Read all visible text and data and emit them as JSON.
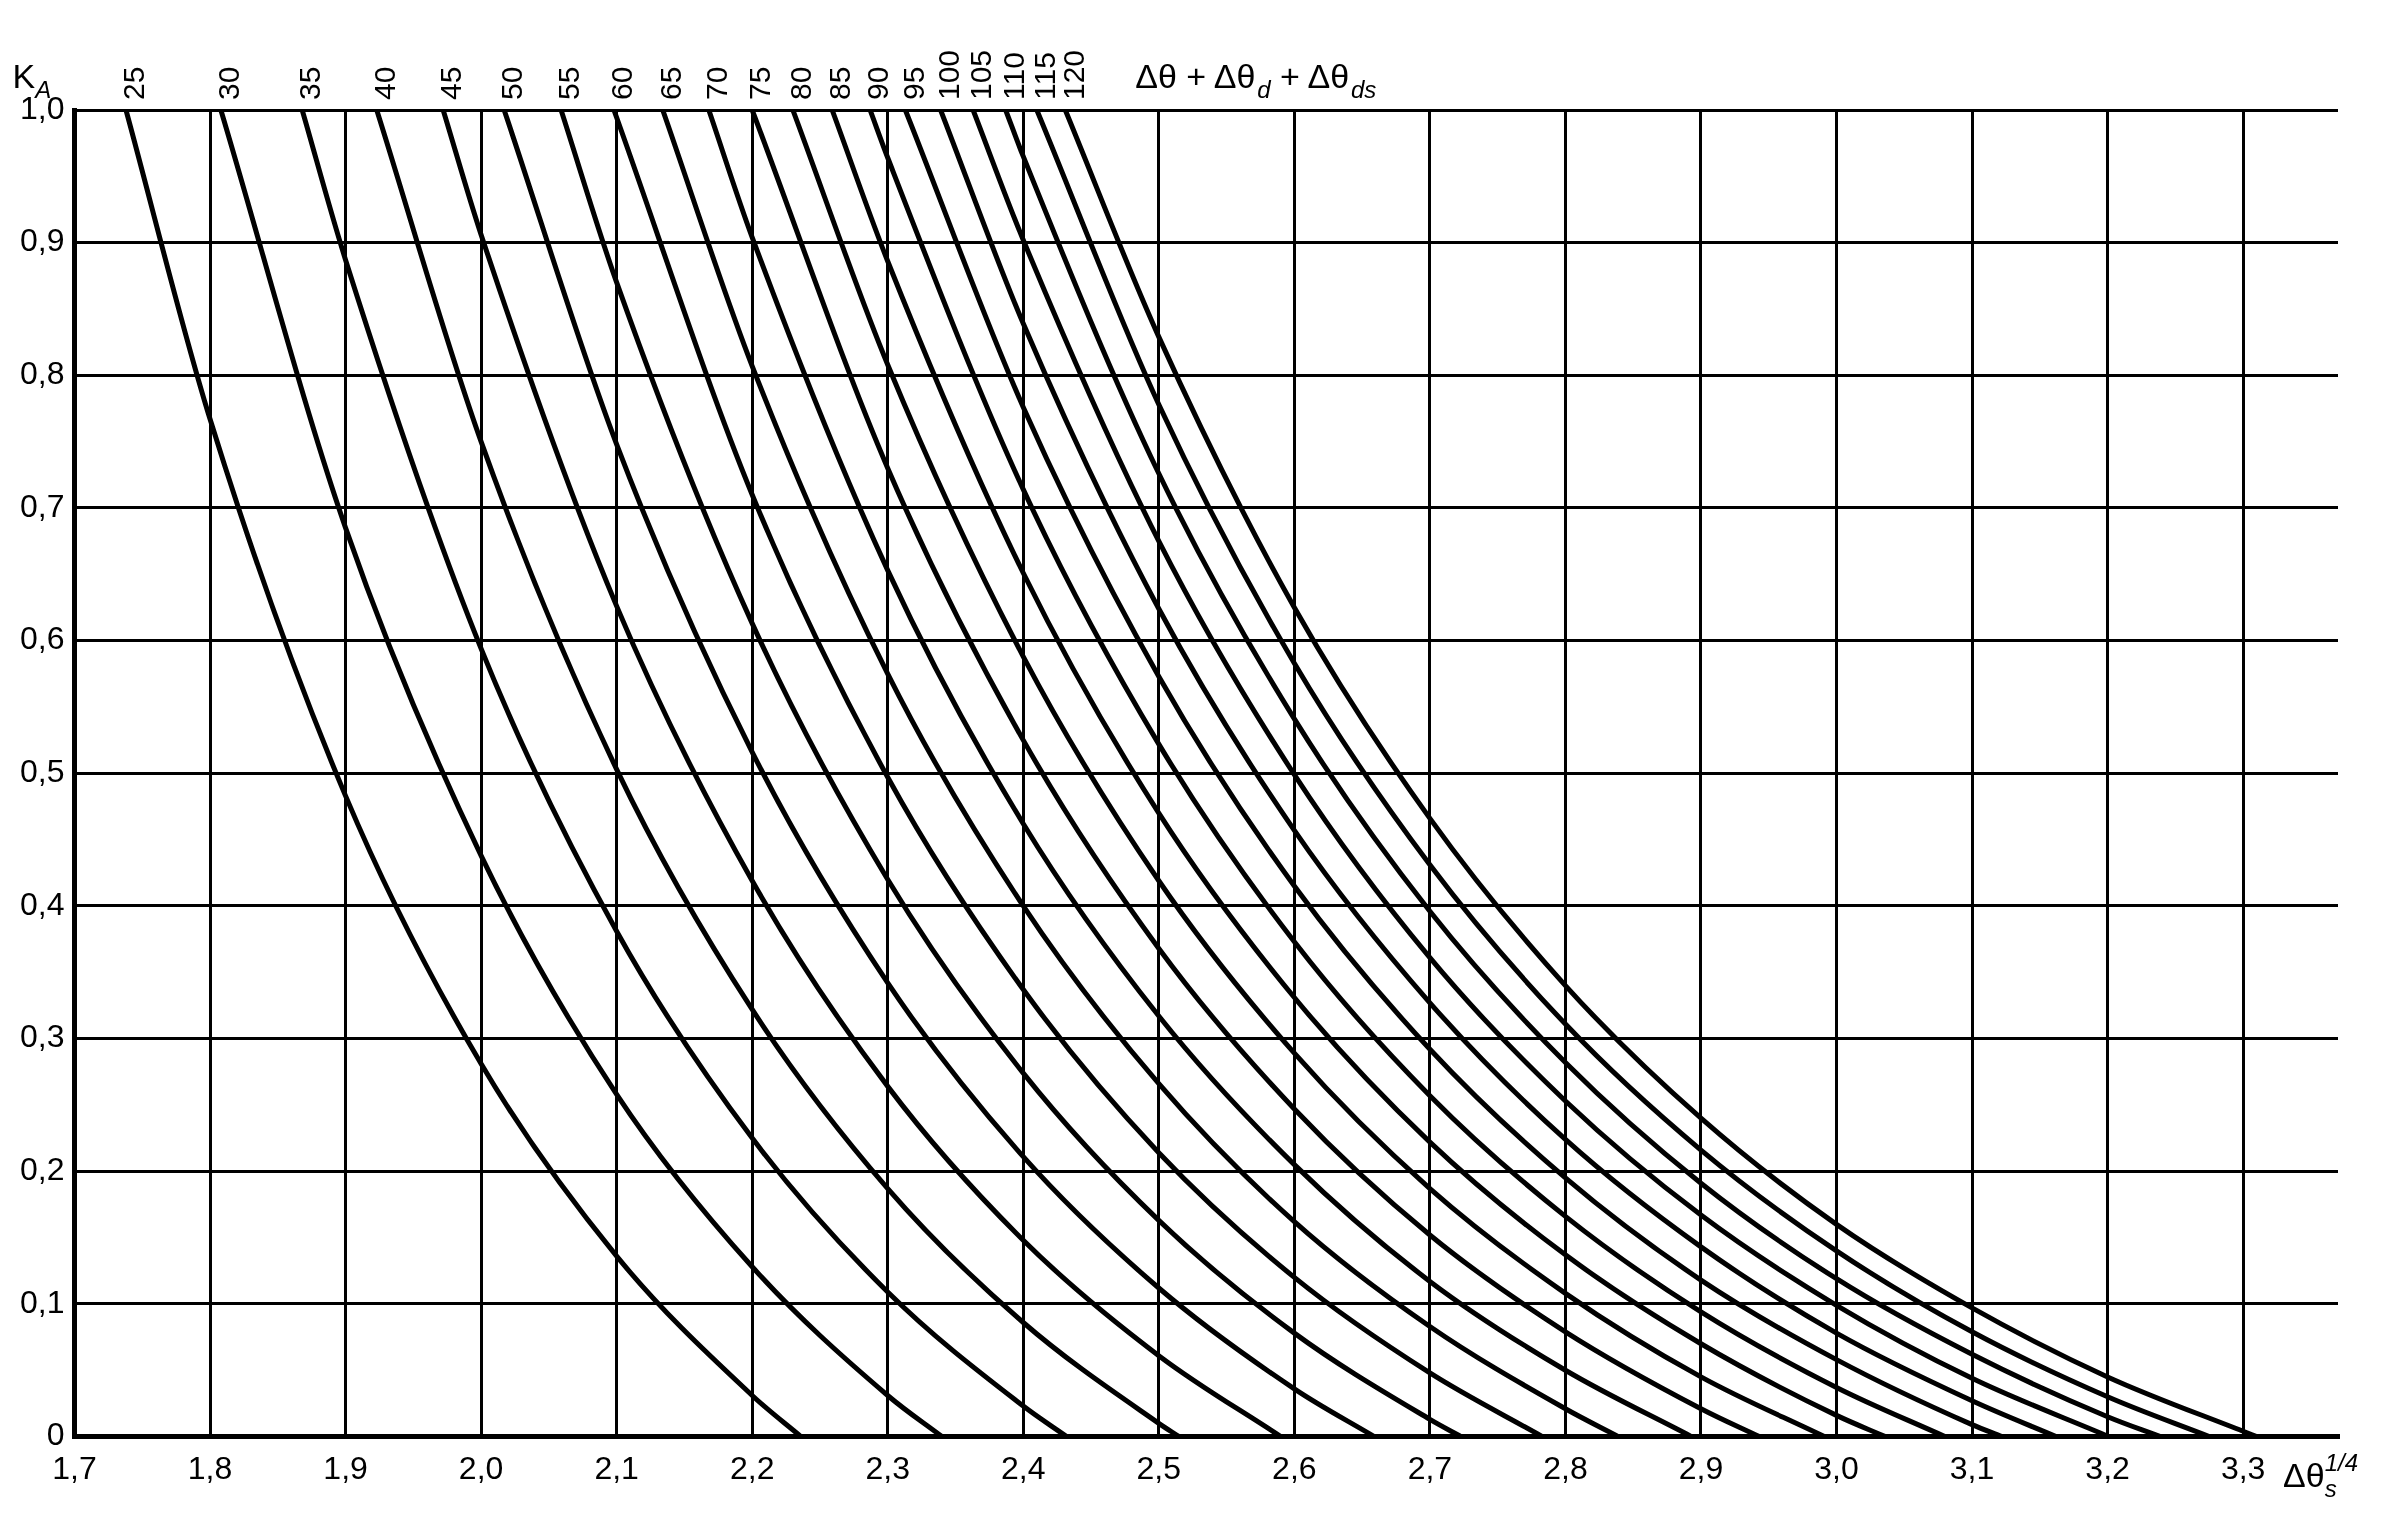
{
  "chart_data": {
    "type": "line",
    "ylabel": "K$_{A}$",
    "xlabel": "Δθ$_{s}$$^{1/4}$",
    "legend_title": "Δθ + Δθ$_{d}$ + Δθ$_{ds}$",
    "xlim": [
      1.7,
      3.37
    ],
    "ylim": [
      0,
      1
    ],
    "xticks": [
      {
        "value": 1.7,
        "label": "1,7"
      },
      {
        "value": 1.8,
        "label": "1,8"
      },
      {
        "value": 1.9,
        "label": "1,9"
      },
      {
        "value": 2.0,
        "label": "2,0"
      },
      {
        "value": 2.1,
        "label": "2,1"
      },
      {
        "value": 2.2,
        "label": "2,2"
      },
      {
        "value": 2.3,
        "label": "2,3"
      },
      {
        "value": 2.4,
        "label": "2,4"
      },
      {
        "value": 2.5,
        "label": "2,5"
      },
      {
        "value": 2.6,
        "label": "2,6"
      },
      {
        "value": 2.7,
        "label": "2,7"
      },
      {
        "value": 2.8,
        "label": "2,8"
      },
      {
        "value": 2.9,
        "label": "2,9"
      },
      {
        "value": 3.0,
        "label": "3,0"
      },
      {
        "value": 3.1,
        "label": "3,1"
      },
      {
        "value": 3.2,
        "label": "3,2"
      },
      {
        "value": 3.3,
        "label": "3,3"
      }
    ],
    "yticks": [
      0,
      {
        "value": 0.1,
        "label": "0,1"
      },
      {
        "value": 0.2,
        "label": "0,2"
      },
      {
        "value": 0.3,
        "label": "0,3"
      },
      {
        "value": 0.4,
        "label": "0,4"
      },
      {
        "value": 0.5,
        "label": "0,5"
      },
      {
        "value": 0.6,
        "label": "0,6"
      },
      {
        "value": 0.7,
        "label": "0,7"
      },
      {
        "value": 0.8,
        "label": "0,8"
      },
      {
        "value": 0.9,
        "label": "0,9"
      },
      {
        "value": 1,
        "label": "1,0"
      }
    ],
    "grid": true,
    "marker": "none",
    "line_style": "solid",
    "series": [
      {
        "name": "25",
        "color": "#000000",
        "x": [
          1.738,
          1.8,
          1.9,
          2.0,
          2.1,
          2.2,
          2.236
        ],
        "values": [
          1,
          0.767,
          0.483,
          0.281,
          0.136,
          0.031,
          0
        ]
      },
      {
        "name": "30",
        "color": "#000000",
        "x": [
          1.808,
          1.9,
          2.0,
          2.1,
          2.2,
          2.3,
          2.34
        ],
        "values": [
          1,
          0.685,
          0.438,
          0.258,
          0.128,
          0.031,
          0
        ]
      },
      {
        "name": "35",
        "color": "#000000",
        "x": [
          1.868,
          1.9,
          2.0,
          2.1,
          2.2,
          2.3,
          2.4,
          2.432
        ],
        "values": [
          1,
          0.887,
          0.594,
          0.381,
          0.225,
          0.109,
          0.023,
          0
        ]
      },
      {
        "name": "40",
        "color": "#000000",
        "x": [
          1.923,
          2.0,
          2.1,
          2.2,
          2.3,
          2.4,
          2.5,
          2.515
        ],
        "values": [
          1,
          0.75,
          0.503,
          0.322,
          0.187,
          0.086,
          0.01,
          0
        ]
      },
      {
        "name": "45",
        "color": "#000000",
        "x": [
          1.972,
          2.0,
          2.1,
          2.2,
          2.3,
          2.4,
          2.5,
          2.59
        ],
        "values": [
          1,
          0.906,
          0.626,
          0.419,
          0.264,
          0.148,
          0.061,
          0
        ]
      },
      {
        "name": "50",
        "color": "#000000",
        "x": [
          2.017,
          2.1,
          2.2,
          2.3,
          2.4,
          2.5,
          2.6,
          2.659
        ],
        "values": [
          1,
          0.748,
          0.516,
          0.342,
          0.211,
          0.112,
          0.036,
          0
        ]
      },
      {
        "name": "55",
        "color": "#000000",
        "x": [
          2.059,
          2.1,
          2.2,
          2.3,
          2.4,
          2.5,
          2.6,
          2.7,
          2.723
        ],
        "values": [
          1,
          0.87,
          0.613,
          0.42,
          0.274,
          0.163,
          0.078,
          0.013,
          0
        ]
      },
      {
        "name": "60",
        "color": "#000000",
        "x": [
          2.098,
          2.2,
          2.3,
          2.4,
          2.5,
          2.6,
          2.7,
          2.783
        ],
        "values": [
          1,
          0.71,
          0.497,
          0.337,
          0.214,
          0.12,
          0.048,
          0
        ]
      },
      {
        "name": "65",
        "color": "#000000",
        "x": [
          2.134,
          2.2,
          2.3,
          2.4,
          2.5,
          2.6,
          2.7,
          2.8,
          2.839
        ],
        "values": [
          1,
          0.807,
          0.575,
          0.4,
          0.266,
          0.162,
          0.083,
          0.021,
          0
        ]
      },
      {
        "name": "70",
        "color": "#000000",
        "x": [
          2.168,
          2.2,
          2.3,
          2.4,
          2.5,
          2.6,
          2.7,
          2.8,
          2.893
        ],
        "values": [
          1,
          0.904,
          0.653,
          0.462,
          0.317,
          0.205,
          0.117,
          0.05,
          0
        ]
      },
      {
        "name": "75",
        "color": "#000000",
        "x": [
          2.2,
          2.3,
          2.4,
          2.5,
          2.6,
          2.7,
          2.8,
          2.9,
          2.943
        ],
        "values": [
          1,
          0.73,
          0.525,
          0.368,
          0.247,
          0.152,
          0.079,
          0.021,
          0
        ]
      },
      {
        "name": "80",
        "color": "#000000",
        "x": [
          2.23,
          2.3,
          2.4,
          2.5,
          2.6,
          2.7,
          2.8,
          2.9,
          2.991
        ],
        "values": [
          1,
          0.808,
          0.588,
          0.419,
          0.289,
          0.187,
          0.108,
          0.045,
          0
        ]
      },
      {
        "name": "85",
        "color": "#000000",
        "x": [
          2.259,
          2.3,
          2.4,
          2.5,
          2.6,
          2.7,
          2.8,
          2.9,
          3.0,
          3.036
        ],
        "values": [
          1,
          0.886,
          0.651,
          0.47,
          0.331,
          0.222,
          0.137,
          0.07,
          0.016,
          0
        ]
      },
      {
        "name": "90",
        "color": "#000000",
        "x": [
          2.287,
          2.3,
          2.4,
          2.5,
          2.6,
          2.7,
          2.8,
          2.9,
          3.0,
          3.08
        ],
        "values": [
          1,
          0.964,
          0.714,
          0.522,
          0.373,
          0.257,
          0.166,
          0.094,
          0.037,
          0
        ]
      },
      {
        "name": "95",
        "color": "#000000",
        "x": [
          2.313,
          2.4,
          2.5,
          2.6,
          2.7,
          2.8,
          2.9,
          3.0,
          3.1,
          3.122
        ],
        "values": [
          1,
          0.776,
          0.573,
          0.415,
          0.292,
          0.195,
          0.118,
          0.058,
          0.009,
          0
        ]
      },
      {
        "name": "100",
        "color": "#000000",
        "x": [
          2.339,
          2.4,
          2.5,
          2.6,
          2.7,
          2.8,
          2.9,
          3.0,
          3.1,
          3.162
        ],
        "values": [
          1,
          0.839,
          0.624,
          0.457,
          0.327,
          0.224,
          0.143,
          0.078,
          0.027,
          0
        ]
      },
      {
        "name": "105",
        "color": "#000000",
        "x": [
          2.363,
          2.4,
          2.5,
          2.6,
          2.7,
          2.8,
          2.9,
          3.0,
          3.1,
          3.201
        ],
        "values": [
          1,
          0.902,
          0.675,
          0.499,
          0.361,
          0.253,
          0.167,
          0.099,
          0.044,
          0
        ]
      },
      {
        "name": "110",
        "color": "#000000",
        "x": [
          2.387,
          2.4,
          2.5,
          2.6,
          2.7,
          2.8,
          2.9,
          3.0,
          3.1,
          3.2,
          3.239
        ],
        "values": [
          1,
          0.965,
          0.726,
          0.541,
          0.396,
          0.282,
          0.191,
          0.119,
          0.062,
          0.015,
          0
        ]
      },
      {
        "name": "115",
        "color": "#000000",
        "x": [
          2.41,
          2.5,
          2.6,
          2.7,
          2.8,
          2.9,
          3.0,
          3.1,
          3.2,
          3.275
        ],
        "values": [
          1,
          0.778,
          0.583,
          0.431,
          0.311,
          0.216,
          0.14,
          0.079,
          0.03,
          0
        ]
      },
      {
        "name": "120",
        "color": "#000000",
        "x": [
          2.431,
          2.5,
          2.6,
          2.7,
          2.8,
          2.9,
          3.0,
          3.1,
          3.2,
          3.3,
          3.31
        ],
        "values": [
          1,
          0.829,
          0.625,
          0.466,
          0.34,
          0.24,
          0.16,
          0.097,
          0.045,
          0.004,
          0
        ]
      }
    ]
  }
}
